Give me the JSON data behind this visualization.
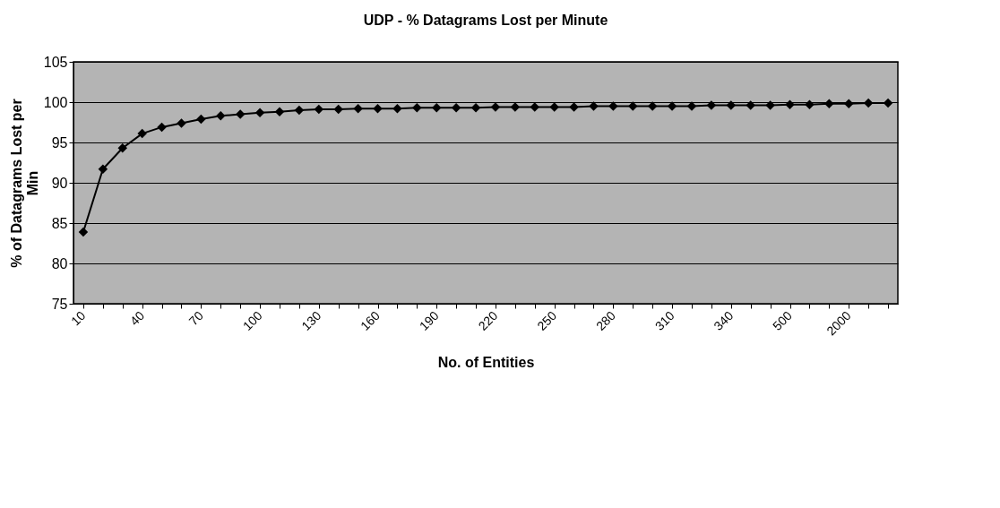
{
  "chart_data": {
    "type": "line",
    "title": "UDP - % Datagrams Lost per Minute",
    "xlabel": "No. of Entities",
    "ylabel": "% of Datagrams Lost per Min",
    "categories": [
      "10",
      null,
      null,
      "40",
      null,
      null,
      "70",
      null,
      null,
      "100",
      null,
      null,
      "130",
      null,
      null,
      "160",
      null,
      null,
      "190",
      null,
      null,
      "220",
      null,
      null,
      "250",
      null,
      null,
      "280",
      null,
      null,
      "310",
      null,
      null,
      "340",
      null,
      null,
      "500",
      null,
      null,
      "2000",
      null,
      null
    ],
    "series": [
      {
        "color": "#000000",
        "values": [
          83.9,
          91.7,
          94.3,
          96.1,
          96.9,
          97.4,
          97.9,
          98.3,
          98.5,
          98.7,
          98.8,
          99.0,
          99.1,
          99.1,
          99.2,
          99.2,
          99.2,
          99.3,
          99.3,
          99.3,
          99.3,
          99.4,
          99.4,
          99.4,
          99.4,
          99.4,
          99.5,
          99.5,
          99.5,
          99.5,
          99.5,
          99.5,
          99.6,
          99.6,
          99.6,
          99.6,
          99.7,
          99.7,
          99.8,
          99.8,
          99.9,
          99.9
        ]
      }
    ],
    "ylim": [
      75,
      105
    ],
    "yticks": [
      75,
      80,
      85,
      90,
      95,
      100,
      105
    ],
    "grid": "y",
    "marker": "diamond"
  }
}
